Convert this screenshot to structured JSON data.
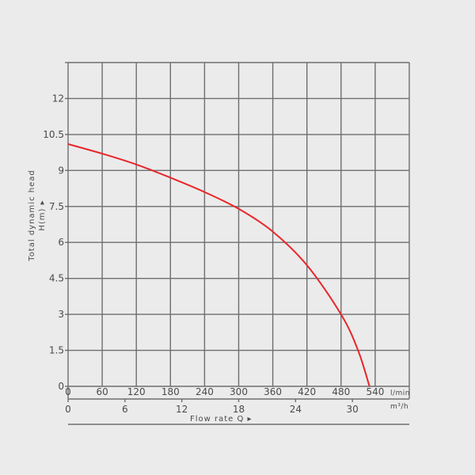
{
  "colors": {
    "background": "#ebebeb",
    "grid": "#6e6e6e",
    "text": "#4a4a4a",
    "curve": "#e8262a"
  },
  "chart_data": {
    "type": "line",
    "y_axis": {
      "label_line1": "Total dynamic head",
      "label_line2": "H(m) ▸",
      "ticks": [
        0,
        1.5,
        3,
        4.5,
        6,
        7.5,
        9,
        10.5,
        12
      ],
      "tick_labels": [
        "0",
        "1.5",
        "3",
        "4.5",
        "6",
        "7.5",
        "9",
        "10.5",
        "12"
      ],
      "range": [
        0,
        13.5
      ]
    },
    "x_axis_lmin": {
      "unit": "l/min",
      "ticks": [
        0,
        60,
        120,
        180,
        240,
        300,
        360,
        420,
        480,
        540
      ],
      "tick_labels": [
        "0",
        "60",
        "120",
        "180",
        "240",
        "300",
        "360",
        "420",
        "480",
        "540"
      ],
      "range": [
        0,
        600
      ]
    },
    "x_axis_m3h": {
      "unit": "m³/h",
      "ticks": [
        0,
        6,
        12,
        18,
        24,
        30
      ],
      "tick_labels": [
        "0",
        "6",
        "12",
        "18",
        "24",
        "30"
      ]
    },
    "x_label": "Flow rate Q ▸",
    "grid": true,
    "series": [
      {
        "color": "#e8262a",
        "x": [
          0,
          60,
          120,
          180,
          240,
          300,
          360,
          420,
          480,
          510,
          530
        ],
        "y": [
          10.1,
          9.7,
          9.25,
          8.7,
          8.1,
          7.4,
          6.45,
          5.05,
          3.0,
          1.5,
          0
        ]
      }
    ]
  }
}
